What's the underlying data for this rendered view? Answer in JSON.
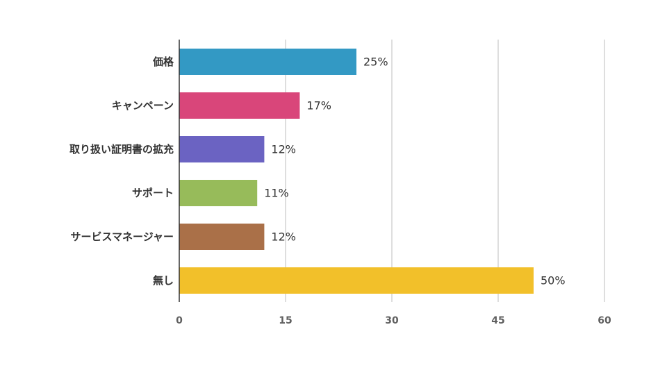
{
  "chart_data": {
    "type": "bar",
    "orientation": "horizontal",
    "categories": [
      "価格",
      "キャンペーン",
      "取り扱い証明書の拡充",
      "サポート",
      "サービスマネージャー",
      "無し"
    ],
    "values": [
      25,
      17,
      12,
      11,
      12,
      50
    ],
    "value_labels": [
      "25%",
      "17%",
      "12%",
      "11%",
      "12%",
      "50%"
    ],
    "colors": [
      "#3399c4",
      "#d9467a",
      "#6b63c2",
      "#97bb5a",
      "#aa7048",
      "#f2c02a"
    ],
    "xlim": [
      0,
      60
    ],
    "xticks": [
      0,
      15,
      30,
      45,
      60
    ],
    "grid": true,
    "legend": "none"
  }
}
